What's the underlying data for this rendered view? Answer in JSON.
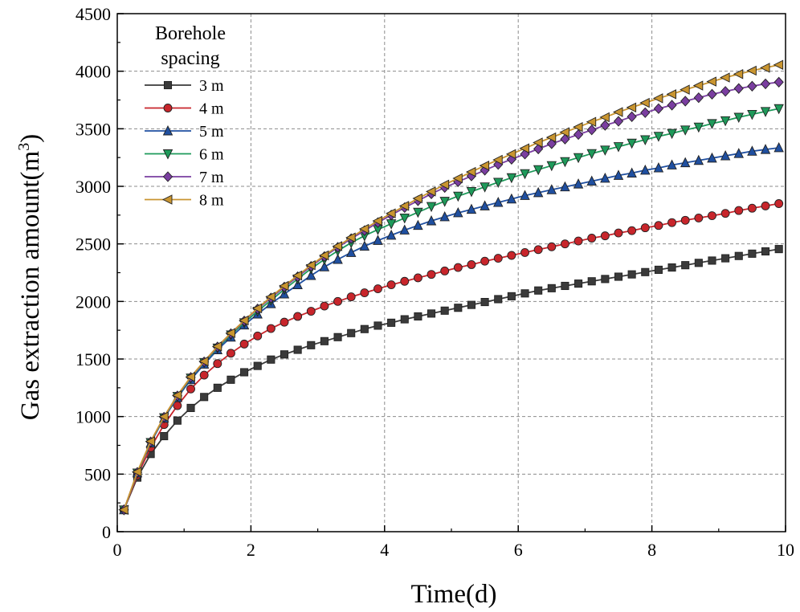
{
  "chart_data": {
    "type": "line",
    "title": "",
    "xlabel": "Time(d)",
    "ylabel_main": "Gas extraction amount(m",
    "ylabel_sup": "3",
    "ylabel_close": ")",
    "xlim": [
      0,
      10
    ],
    "ylim": [
      0,
      4500
    ],
    "xticks": [
      "0",
      "2",
      "4",
      "6",
      "8",
      "10"
    ],
    "yticks": [
      "0",
      "500",
      "1000",
      "1500",
      "2000",
      "2500",
      "3000",
      "3500",
      "4000",
      "4500"
    ],
    "grid": true,
    "legend": {
      "title_line1": "Borehole",
      "title_line2": "spacing",
      "placement": "top-left"
    },
    "x": [
      0.1,
      0.3,
      0.5,
      0.7,
      0.9,
      1.1,
      1.3,
      1.5,
      1.7,
      1.9,
      2.1,
      2.3,
      2.5,
      2.7,
      2.9,
      3.1,
      3.3,
      3.5,
      3.7,
      3.9,
      4.1,
      4.3,
      4.5,
      4.7,
      4.9,
      5.1,
      5.3,
      5.5,
      5.7,
      5.9,
      6.1,
      6.3,
      6.5,
      6.7,
      6.9,
      7.1,
      7.3,
      7.5,
      7.7,
      7.9,
      8.1,
      8.3,
      8.5,
      8.7,
      8.9,
      9.1,
      9.3,
      9.5,
      9.7,
      9.9
    ],
    "series": [
      {
        "name": "3 m",
        "color": "#3a3a3a",
        "marker": "square",
        "values": [
          190,
          470,
          675,
          830,
          965,
          1075,
          1170,
          1250,
          1320,
          1385,
          1440,
          1495,
          1540,
          1580,
          1620,
          1655,
          1690,
          1725,
          1760,
          1790,
          1815,
          1845,
          1870,
          1895,
          1920,
          1945,
          1970,
          1995,
          2020,
          2045,
          2070,
          2095,
          2115,
          2135,
          2155,
          2175,
          2195,
          2215,
          2235,
          2255,
          2275,
          2295,
          2315,
          2335,
          2355,
          2375,
          2395,
          2415,
          2435,
          2455
        ]
      },
      {
        "name": "4 m",
        "color": "#c8252b",
        "marker": "circle",
        "values": [
          190,
          490,
          730,
          930,
          1095,
          1240,
          1360,
          1460,
          1550,
          1630,
          1700,
          1765,
          1820,
          1870,
          1915,
          1960,
          2000,
          2040,
          2075,
          2110,
          2145,
          2175,
          2205,
          2235,
          2265,
          2295,
          2320,
          2350,
          2375,
          2400,
          2425,
          2450,
          2475,
          2500,
          2525,
          2550,
          2570,
          2595,
          2615,
          2640,
          2660,
          2685,
          2705,
          2725,
          2745,
          2765,
          2790,
          2810,
          2830,
          2850
        ]
      },
      {
        "name": "5 m",
        "color": "#1f4fa0",
        "marker": "triangle-up",
        "values": [
          190,
          510,
          770,
          985,
          1165,
          1320,
          1455,
          1580,
          1690,
          1795,
          1890,
          1980,
          2065,
          2145,
          2225,
          2300,
          2365,
          2425,
          2480,
          2530,
          2575,
          2620,
          2660,
          2700,
          2735,
          2770,
          2800,
          2830,
          2860,
          2890,
          2920,
          2945,
          2970,
          2995,
          3020,
          3045,
          3070,
          3095,
          3115,
          3140,
          3160,
          3185,
          3205,
          3225,
          3245,
          3265,
          3285,
          3305,
          3320,
          3335
        ]
      },
      {
        "name": "6 m",
        "color": "#1e9a5a",
        "marker": "triangle-down",
        "values": [
          190,
          510,
          775,
          990,
          1175,
          1335,
          1470,
          1595,
          1710,
          1815,
          1915,
          2010,
          2105,
          2195,
          2285,
          2365,
          2440,
          2510,
          2570,
          2625,
          2675,
          2725,
          2775,
          2825,
          2870,
          2915,
          2955,
          2995,
          3035,
          3075,
          3110,
          3145,
          3180,
          3215,
          3250,
          3285,
          3315,
          3345,
          3375,
          3405,
          3435,
          3460,
          3490,
          3515,
          3545,
          3570,
          3600,
          3625,
          3650,
          3675
        ]
      },
      {
        "name": "7 m",
        "color": "#7a3ea0",
        "marker": "diamond",
        "values": [
          190,
          515,
          780,
          995,
          1180,
          1340,
          1475,
          1605,
          1720,
          1830,
          1935,
          2030,
          2125,
          2215,
          2305,
          2390,
          2470,
          2545,
          2615,
          2685,
          2750,
          2815,
          2875,
          2935,
          2990,
          3040,
          3090,
          3140,
          3190,
          3235,
          3280,
          3325,
          3370,
          3410,
          3450,
          3490,
          3530,
          3565,
          3605,
          3640,
          3675,
          3705,
          3740,
          3770,
          3800,
          3825,
          3850,
          3870,
          3890,
          3905
        ]
      },
      {
        "name": "8 m",
        "color": "#c99530",
        "marker": "triangle-left",
        "values": [
          190,
          520,
          785,
          1000,
          1185,
          1345,
          1480,
          1610,
          1725,
          1835,
          1940,
          2040,
          2135,
          2225,
          2315,
          2400,
          2480,
          2555,
          2630,
          2700,
          2765,
          2830,
          2895,
          2955,
          3015,
          3070,
          3125,
          3180,
          3230,
          3280,
          3330,
          3380,
          3425,
          3470,
          3515,
          3560,
          3600,
          3645,
          3685,
          3725,
          3765,
          3800,
          3840,
          3875,
          3910,
          3945,
          3975,
          4005,
          4030,
          4055
        ]
      }
    ]
  }
}
